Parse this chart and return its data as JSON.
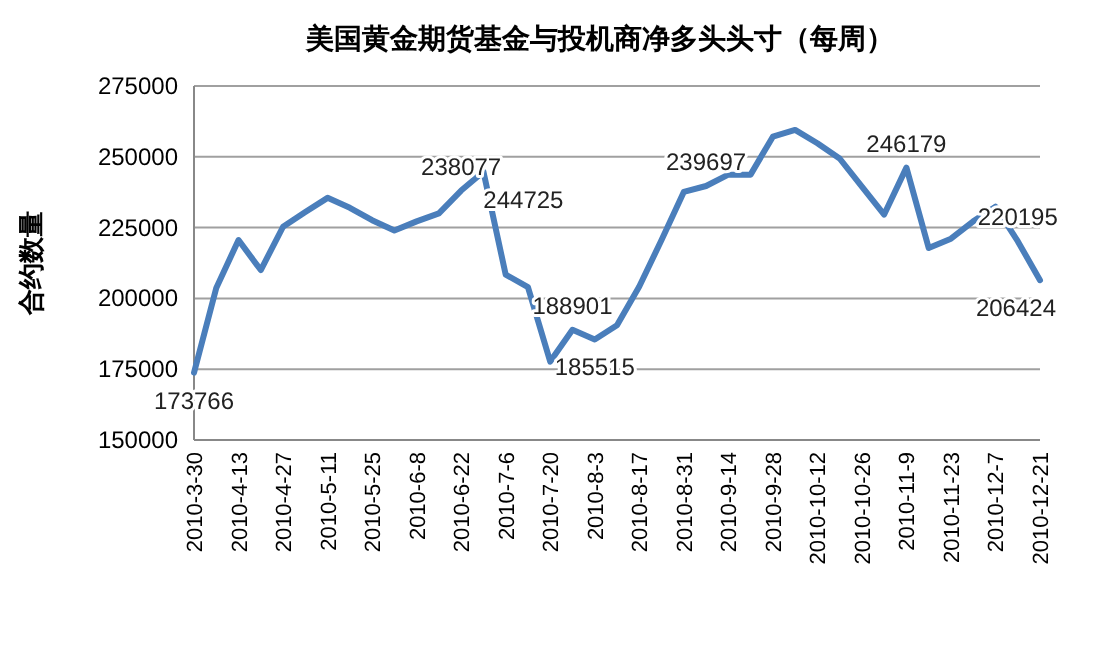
{
  "chart_data": {
    "type": "line",
    "title": "美国黄金期货基金与投机商净多头头寸（每周）",
    "ylabel": "合约数量",
    "categories": [
      "2010-3-30",
      null,
      "2010-4-13",
      null,
      "2010-4-27",
      null,
      "2010-5-11",
      null,
      "2010-5-25",
      null,
      "2010-6-8",
      null,
      "2010-6-22",
      null,
      "2010-7-6",
      null,
      "2010-7-20",
      null,
      "2010-8-3",
      null,
      "2010-8-17",
      null,
      "2010-8-31",
      null,
      "2010-9-14",
      null,
      "2010-9-28",
      null,
      "2010-10-12",
      null,
      "2010-10-26",
      null,
      "2010-11-9",
      null,
      "2010-11-23",
      null,
      "2010-12-7",
      null,
      "2010-12-21"
    ],
    "series": [
      {
        "color": "#4a7ebb",
        "values": [
          173766,
          203700,
          220600,
          210000,
          225300,
          230500,
          235500,
          232000,
          227600,
          224000,
          227200,
          230000,
          238077,
          244725,
          208400,
          204000,
          177700,
          188901,
          185515,
          190500,
          204200,
          220600,
          237600,
          239697,
          243700,
          243700,
          257100,
          259500,
          254800,
          249400,
          239500,
          229600,
          246179,
          217800,
          221100,
          227200,
          232400,
          220195,
          206424
        ],
        "value_labels": [
          "173766",
          null,
          null,
          null,
          null,
          null,
          null,
          null,
          null,
          null,
          null,
          null,
          "238077",
          "244725",
          null,
          null,
          null,
          "188901",
          "185515",
          null,
          null,
          null,
          null,
          "239697",
          null,
          null,
          null,
          null,
          null,
          null,
          null,
          null,
          "246179",
          null,
          null,
          null,
          null,
          "220195",
          "206424"
        ]
      }
    ],
    "ylim": [
      150000,
      275000
    ],
    "yticks": [
      150000,
      175000,
      200000,
      225000,
      250000,
      275000
    ],
    "grid": "y",
    "marker": "none",
    "line_style": "solid"
  }
}
